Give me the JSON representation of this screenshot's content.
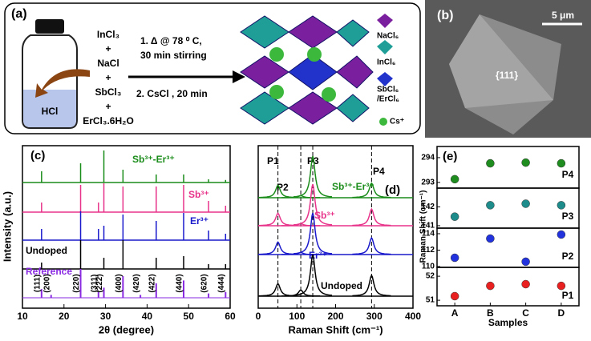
{
  "panel_a": {
    "label": "(a)",
    "reagents": [
      "InCl₃",
      "+",
      "NaCl",
      "+",
      "SbCl₃",
      "+",
      "ErCl₃.6H₂O"
    ],
    "solvent": "HCl",
    "steps": [
      "1.   Δ @ 78 ⁰ C,",
      "30 min stirring",
      "2. CsCl , 20 min"
    ],
    "legend": [
      "NaCl₆",
      "InCl₆",
      "SbCl₆",
      "/ErCl₆",
      "Cs⁺"
    ]
  },
  "panel_b": {
    "label": "(b)",
    "scale_bar": "5 μm",
    "facet": "{111}"
  },
  "chart_data": [
    {
      "type": "spectrum",
      "panel_label": "(c)",
      "x_label": "2θ (degree)",
      "y_label": "Intensity (a.u.)",
      "xlim": [
        10,
        60
      ],
      "xticks": [
        10,
        20,
        30,
        40,
        50,
        60
      ],
      "series": [
        {
          "name": "Sb³⁺-Er³⁺",
          "color": "#1a8c1a",
          "x": [
            14.6,
            24.0,
            29.6,
            34.2,
            42.2,
            48.8,
            54.8,
            58.9
          ],
          "values": [
            0.35,
            0.6,
            1,
            0.4,
            0.25,
            0.25,
            0.1,
            0.08
          ]
        },
        {
          "name": "Sb³⁺",
          "color": "#e8338a",
          "x": [
            14.6,
            24.0,
            28.3,
            29.6,
            34.2,
            42.2,
            48.8,
            54.8,
            58.9
          ],
          "values": [
            0.3,
            0.85,
            0.3,
            0.9,
            0.8,
            0.8,
            0.85,
            0.35,
            0.2
          ]
        },
        {
          "name": "Er³⁺",
          "color": "#1a1acc",
          "x": [
            14.6,
            24.0,
            28.3,
            29.6,
            34.2,
            42.2,
            48.8,
            54.8,
            58.9
          ],
          "values": [
            0.35,
            0.9,
            0.35,
            0.45,
            0.8,
            0.6,
            0.85,
            0.3,
            0.2
          ]
        },
        {
          "name": "Undoped",
          "color": "#000000",
          "x": [
            14.6,
            24.0,
            29.6,
            34.2,
            42.2,
            48.8,
            54.8,
            58.9
          ],
          "values": [
            0.2,
            0.9,
            0.35,
            0.9,
            0.35,
            0.4,
            0.15,
            0.15
          ]
        }
      ],
      "reference": {
        "name": "Reference",
        "color": "#8a2be2",
        "x": [
          14.6,
          16.9,
          24.0,
          28.3,
          29.6,
          34.2,
          38.4,
          42.2,
          48.8,
          54.8,
          58.9
        ],
        "values": [
          0.3,
          0.1,
          1,
          0.2,
          0.35,
          0.75,
          0.1,
          0.5,
          0.6,
          0.15,
          0.2
        ],
        "labels": [
          "(111)",
          "(200)",
          "(220)",
          "(311)",
          "(222)",
          "(400)",
          "(420)",
          "(422)",
          "(440)",
          "(620)",
          "(444)"
        ]
      }
    },
    {
      "type": "spectrum",
      "panel_label": "(d)",
      "x_label": "Raman Shift (cm⁻¹)",
      "xlim": [
        0,
        400
      ],
      "xticks": [
        0,
        100,
        200,
        300,
        400
      ],
      "peak_lines": {
        "labels": [
          "P1",
          "P2",
          "P3",
          "P4"
        ],
        "x": [
          51,
          110,
          141,
          293
        ]
      },
      "series": [
        {
          "name": "Sb³⁺-Er³⁺",
          "color": "#1a8c1a",
          "x": [
            51,
            110,
            141,
            293
          ],
          "values": [
            0.3,
            0.05,
            1,
            0.35
          ]
        },
        {
          "name": "Sb³⁺",
          "color": "#e8338a",
          "x": [
            51,
            110,
            141,
            293
          ],
          "values": [
            0.3,
            0.05,
            1,
            0.4
          ]
        },
        {
          "name": "Er³⁺",
          "color": "#1a1acc",
          "x": [
            51,
            110,
            141,
            293
          ],
          "values": [
            0.3,
            0.05,
            1,
            0.4
          ]
        },
        {
          "name": "Undoped",
          "color": "#000000",
          "x": [
            51,
            110,
            141,
            293
          ],
          "values": [
            0.3,
            0.15,
            1,
            0.5
          ]
        }
      ]
    },
    {
      "type": "scatter",
      "panel_label": "(e)",
      "y_label": "Raman Shift (cm⁻¹)",
      "label": "P4",
      "color": "#1e8c1e",
      "values": [
        293.13,
        293.77,
        293.8,
        293.77
      ],
      "ylim": [
        292.77,
        294.45
      ],
      "yticks": [
        293,
        294
      ]
    },
    {
      "type": "scatter",
      "label": "P3",
      "color": "#1e8c8a",
      "values": [
        141.48,
        142.09,
        142.17,
        142.09
      ],
      "ylim": [
        140.87,
        143.0
      ],
      "yticks": [
        141,
        142
      ]
    },
    {
      "type": "scatter",
      "label": "P2",
      "color": "#2233dd",
      "values": [
        111.07,
        113.41,
        110.59,
        113.9
      ],
      "ylim": [
        109.9,
        114.68
      ],
      "yticks": [
        110,
        112,
        114
      ]
    },
    {
      "type": "scatter",
      "label": "P1",
      "color": "#e82020",
      "x_label": "Samples",
      "categories": [
        "A",
        "B",
        "C",
        "D"
      ],
      "values": [
        51.17,
        51.6,
        51.67,
        51.6
      ],
      "ylim": [
        50.77,
        52.37
      ],
      "yticks": [
        51,
        52
      ]
    }
  ]
}
